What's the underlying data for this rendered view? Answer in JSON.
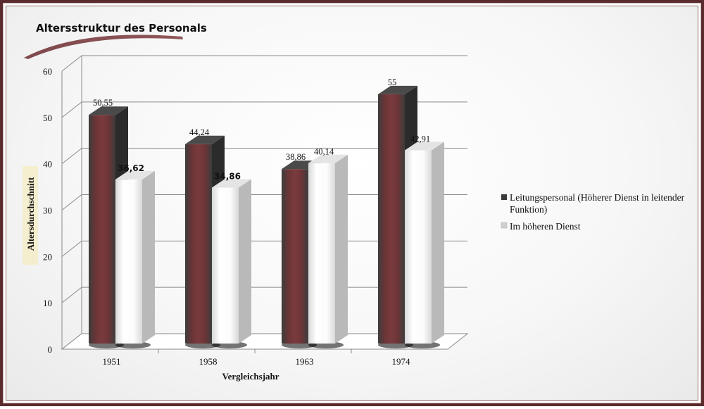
{
  "chart_data": {
    "type": "bar",
    "title": "Altersstruktur des Personals",
    "xlabel": "Vergleichsjahr",
    "ylabel": "Altersdurchschnitt",
    "categories": [
      "1951",
      "1958",
      "1963",
      "1974"
    ],
    "ylim": [
      0,
      60
    ],
    "yticks": [
      "0",
      "10",
      "20",
      "30",
      "40",
      "50",
      "60"
    ],
    "grid": true,
    "legend_position": "right",
    "series": [
      {
        "name": "Leitungspersonal (Höherer Dienst in leitender Funktion)",
        "values": [
          50.55,
          44.24,
          38.86,
          55
        ],
        "labels": [
          "50,55",
          "44,24",
          "38,86",
          "55"
        ],
        "color": "#3a3a3a",
        "accent": "#7a3538"
      },
      {
        "name": "Im höheren Dienst",
        "values": [
          36.62,
          34.86,
          40.14,
          42.91
        ],
        "labels": [
          "36,62",
          "34,86",
          "40,14",
          "42,91"
        ],
        "color": "#f2f2f2",
        "accent": "#ffffff"
      }
    ]
  }
}
